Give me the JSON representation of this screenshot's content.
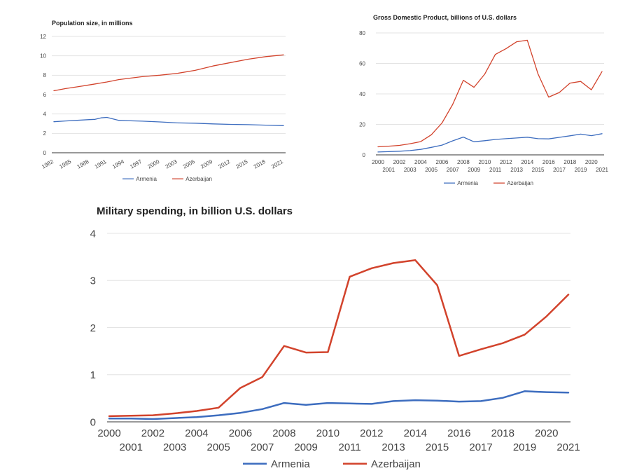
{
  "colors": {
    "armenia": "#3d6dbf",
    "azerbaijan": "#d2432c"
  },
  "chart_data": [
    {
      "id": "population",
      "type": "line",
      "title": "Population size, in millions",
      "xlabel": "",
      "ylabel": "",
      "ylim": [
        0,
        12
      ],
      "yticks": [
        0,
        2,
        4,
        6,
        8,
        10,
        12
      ],
      "xlim": [
        1982,
        2021
      ],
      "xticks": [
        1982,
        1985,
        1988,
        1991,
        1994,
        1997,
        2000,
        2003,
        2006,
        2009,
        2012,
        2015,
        2018,
        2021
      ],
      "grid": true,
      "legend": "bottom",
      "x": [
        1982,
        1984,
        1986,
        1988,
        1989,
        1990,
        1991,
        1992,
        1993,
        1995,
        1997,
        2000,
        2003,
        2006,
        2009,
        2012,
        2015,
        2018,
        2021
      ],
      "series": [
        {
          "name": "Armenia",
          "color": "#3d6dbf",
          "values": [
            3.2,
            3.28,
            3.35,
            3.42,
            3.45,
            3.6,
            3.65,
            3.5,
            3.35,
            3.3,
            3.26,
            3.18,
            3.08,
            3.05,
            2.98,
            2.93,
            2.9,
            2.85,
            2.8
          ]
        },
        {
          "name": "Azerbaijan",
          "color": "#d2432c",
          "values": [
            6.4,
            6.62,
            6.8,
            7.0,
            7.1,
            7.2,
            7.3,
            7.42,
            7.55,
            7.7,
            7.85,
            8.0,
            8.2,
            8.5,
            8.95,
            9.3,
            9.65,
            9.92,
            10.1
          ]
        }
      ]
    },
    {
      "id": "gdp",
      "type": "line",
      "title": "Gross Domestic Product, billions of U.S. dollars",
      "xlabel": "",
      "ylabel": "",
      "ylim": [
        0,
        80
      ],
      "yticks": [
        0,
        20,
        40,
        60,
        80
      ],
      "xlim": [
        2000,
        2021
      ],
      "xticks_top": [
        2000,
        2002,
        2004,
        2006,
        2008,
        2010,
        2012,
        2014,
        2016,
        2018,
        2020
      ],
      "xticks_bottom": [
        2001,
        2003,
        2005,
        2007,
        2009,
        2011,
        2013,
        2015,
        2017,
        2019,
        2021
      ],
      "grid": true,
      "legend": "bottom",
      "x": [
        2000,
        2001,
        2002,
        2003,
        2004,
        2005,
        2006,
        2007,
        2008,
        2009,
        2010,
        2011,
        2012,
        2013,
        2014,
        2015,
        2016,
        2017,
        2018,
        2019,
        2020,
        2021
      ],
      "series": [
        {
          "name": "Armenia",
          "color": "#3d6dbf",
          "values": [
            1.9,
            2.1,
            2.4,
            2.8,
            3.6,
            4.9,
            6.4,
            9.2,
            11.7,
            8.6,
            9.3,
            10.1,
            10.6,
            11.1,
            11.6,
            10.6,
            10.5,
            11.5,
            12.5,
            13.6,
            12.6,
            13.9
          ]
        },
        {
          "name": "Azerbaijan",
          "color": "#d2432c",
          "values": [
            5.3,
            5.7,
            6.2,
            7.3,
            8.7,
            13.2,
            20.9,
            33.1,
            48.9,
            44.3,
            52.9,
            65.9,
            69.7,
            74.2,
            75.2,
            53.1,
            37.9,
            40.9,
            47.1,
            48.2,
            42.7,
            54.6
          ]
        }
      ]
    },
    {
      "id": "military",
      "type": "line",
      "title": "Military spending, in billion U.S. dollars",
      "xlabel": "",
      "ylabel": "",
      "ylim": [
        0,
        4
      ],
      "yticks": [
        0,
        1,
        2,
        3,
        4
      ],
      "xlim": [
        2000,
        2021
      ],
      "xticks_top": [
        2000,
        2002,
        2004,
        2006,
        2008,
        2010,
        2012,
        2014,
        2016,
        2018,
        2020
      ],
      "xticks_bottom": [
        2001,
        2003,
        2005,
        2007,
        2009,
        2011,
        2013,
        2015,
        2017,
        2019,
        2021
      ],
      "grid": true,
      "legend": "bottom",
      "x": [
        2000,
        2001,
        2002,
        2003,
        2004,
        2005,
        2006,
        2007,
        2008,
        2009,
        2010,
        2011,
        2012,
        2013,
        2014,
        2015,
        2016,
        2017,
        2018,
        2019,
        2020,
        2021
      ],
      "series": [
        {
          "name": "Armenia",
          "color": "#3d6dbf",
          "values": [
            0.07,
            0.07,
            0.06,
            0.08,
            0.1,
            0.14,
            0.19,
            0.27,
            0.4,
            0.36,
            0.4,
            0.39,
            0.38,
            0.44,
            0.46,
            0.45,
            0.43,
            0.44,
            0.51,
            0.65,
            0.63,
            0.62
          ]
        },
        {
          "name": "Azerbaijan",
          "color": "#d2432c",
          "values": [
            0.12,
            0.13,
            0.14,
            0.18,
            0.23,
            0.3,
            0.72,
            0.95,
            1.61,
            1.47,
            1.48,
            3.08,
            3.26,
            3.37,
            3.43,
            2.9,
            1.4,
            1.54,
            1.67,
            1.85,
            2.24,
            2.7
          ]
        }
      ]
    }
  ]
}
